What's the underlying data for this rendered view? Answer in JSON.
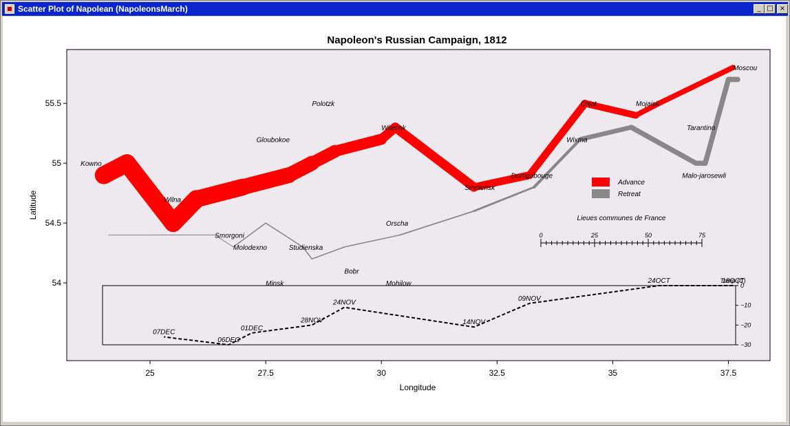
{
  "window": {
    "title": "Scatter Plot of Napolean (NapoleonsMarch)",
    "controls": {
      "minimize": "_",
      "maximize": "□",
      "close": "×"
    }
  },
  "colors": {
    "titlebar": "#0a24ce",
    "plot_background": "#ede9ee",
    "advance": "#ff0000",
    "retreat": "#888888"
  },
  "chart_data": {
    "type": "line",
    "title": "Napoleon's Russian Campaign, 1812",
    "xlabel": "Longitude",
    "ylabel": "Latitude",
    "xlim": [
      23.2,
      38.4
    ],
    "ylim": [
      53.35,
      55.95
    ],
    "xticks": [
      25,
      27.5,
      30,
      32.5,
      35,
      37.5
    ],
    "xtick_labels": [
      "25",
      "27.5",
      "30",
      "32.5",
      "35",
      "37.5"
    ],
    "yticks": [
      54,
      54.5,
      55,
      55.5
    ],
    "ytick_labels": [
      "54",
      "54.5",
      "55",
      "55.5"
    ],
    "grid": false,
    "legend": {
      "position": "right",
      "entries": [
        {
          "label": "Advance",
          "color": "#ff0000"
        },
        {
          "label": "Retreat",
          "color": "#888888"
        }
      ]
    },
    "series": [
      {
        "name": "Advance",
        "color": "#ff0000",
        "points": [
          {
            "lon": 24.0,
            "lat": 54.9,
            "survivors": 340000
          },
          {
            "lon": 24.5,
            "lat": 55.0,
            "survivors": 340000
          },
          {
            "lon": 25.5,
            "lat": 54.5,
            "survivors": 340000
          },
          {
            "lon": 26.0,
            "lat": 54.7,
            "survivors": 320000
          },
          {
            "lon": 27.0,
            "lat": 54.8,
            "survivors": 300000
          },
          {
            "lon": 28.0,
            "lat": 54.9,
            "survivors": 280000
          },
          {
            "lon": 28.5,
            "lat": 55.0,
            "survivors": 240000
          },
          {
            "lon": 29.0,
            "lat": 55.1,
            "survivors": 210000
          },
          {
            "lon": 30.0,
            "lat": 55.2,
            "survivors": 180000
          },
          {
            "lon": 30.3,
            "lat": 55.3,
            "survivors": 175000
          },
          {
            "lon": 32.0,
            "lat": 54.8,
            "survivors": 145000
          },
          {
            "lon": 33.2,
            "lat": 54.9,
            "survivors": 140000
          },
          {
            "lon": 34.4,
            "lat": 55.5,
            "survivors": 127100
          },
          {
            "lon": 35.5,
            "lat": 55.4,
            "survivors": 100000
          },
          {
            "lon": 36.0,
            "lat": 55.5,
            "survivors": 100000
          },
          {
            "lon": 37.6,
            "lat": 55.8,
            "survivors": 100000
          }
        ]
      },
      {
        "name": "Retreat",
        "color": "#888888",
        "points": [
          {
            "lon": 37.7,
            "lat": 55.7,
            "survivors": 100000
          },
          {
            "lon": 37.5,
            "lat": 55.7,
            "survivors": 98000
          },
          {
            "lon": 37.0,
            "lat": 55.0,
            "survivors": 97000
          },
          {
            "lon": 36.8,
            "lat": 55.0,
            "survivors": 96000
          },
          {
            "lon": 35.4,
            "lat": 55.3,
            "survivors": 87000
          },
          {
            "lon": 34.3,
            "lat": 55.2,
            "survivors": 55000
          },
          {
            "lon": 33.3,
            "lat": 54.8,
            "survivors": 37000
          },
          {
            "lon": 32.0,
            "lat": 54.6,
            "survivors": 24000
          },
          {
            "lon": 30.4,
            "lat": 54.4,
            "survivors": 20000
          },
          {
            "lon": 29.2,
            "lat": 54.3,
            "survivors": 20000
          },
          {
            "lon": 28.5,
            "lat": 54.2,
            "survivors": 20000
          },
          {
            "lon": 28.3,
            "lat": 54.3,
            "survivors": 20000
          },
          {
            "lon": 27.5,
            "lat": 54.5,
            "survivors": 20000
          },
          {
            "lon": 26.8,
            "lat": 54.3,
            "survivors": 12000
          },
          {
            "lon": 26.4,
            "lat": 54.4,
            "survivors": 14000
          },
          {
            "lon": 25.0,
            "lat": 54.4,
            "survivors": 8000
          },
          {
            "lon": 24.4,
            "lat": 54.4,
            "survivors": 4000
          },
          {
            "lon": 24.2,
            "lat": 54.4,
            "survivors": 4000
          },
          {
            "lon": 24.1,
            "lat": 54.4,
            "survivors": 4000
          }
        ]
      }
    ],
    "cities": [
      {
        "name": "Kowno",
        "lon": 23.5,
        "lat": 55.0
      },
      {
        "name": "Wilna",
        "lon": 25.3,
        "lat": 54.7
      },
      {
        "name": "Smorgoni",
        "lon": 26.4,
        "lat": 54.4
      },
      {
        "name": "Molodexno",
        "lon": 26.8,
        "lat": 54.3
      },
      {
        "name": "Gloubokoe",
        "lon": 27.3,
        "lat": 55.2
      },
      {
        "name": "Minsk",
        "lon": 27.5,
        "lat": 54.0
      },
      {
        "name": "Studienska",
        "lon": 28.0,
        "lat": 54.3
      },
      {
        "name": "Polotzk",
        "lon": 28.5,
        "lat": 55.5
      },
      {
        "name": "Bobr",
        "lon": 29.2,
        "lat": 54.1
      },
      {
        "name": "Witebsk",
        "lon": 30.0,
        "lat": 55.3
      },
      {
        "name": "Orscha",
        "lon": 30.1,
        "lat": 54.5
      },
      {
        "name": "Mohilow",
        "lon": 30.1,
        "lat": 54.0
      },
      {
        "name": "Smolensk",
        "lon": 31.8,
        "lat": 54.8
      },
      {
        "name": "Dorogobouge",
        "lon": 32.8,
        "lat": 54.9
      },
      {
        "name": "Wixma",
        "lon": 34.0,
        "lat": 55.2
      },
      {
        "name": "Chjat",
        "lon": 34.3,
        "lat": 55.5
      },
      {
        "name": "Mojaisk",
        "lon": 35.5,
        "lat": 55.5
      },
      {
        "name": "Tarantino",
        "lon": 36.6,
        "lat": 55.3
      },
      {
        "name": "Malo-jarosewli",
        "lon": 36.5,
        "lat": 54.9
      },
      {
        "name": "Moscou",
        "lon": 37.6,
        "lat": 55.8
      }
    ],
    "scale_bar": {
      "title": "Lieues communes de France",
      "ticks": [
        0,
        25,
        50,
        75
      ],
      "tick_labels": [
        "0",
        "25",
        "50",
        "75"
      ]
    },
    "temperature": {
      "ylabel": "Temp (C)",
      "yticks": [
        0,
        -10,
        -20,
        -30
      ],
      "ytick_labels": [
        "0",
        "−10",
        "−20",
        "−30"
      ],
      "points": [
        {
          "lon": 37.6,
          "temp": 0,
          "label": "18OCT"
        },
        {
          "lon": 36.0,
          "temp": 0,
          "label": "24OCT"
        },
        {
          "lon": 33.2,
          "temp": -9,
          "label": "09NOV"
        },
        {
          "lon": 32.0,
          "temp": -21,
          "label": "14NOV"
        },
        {
          "lon": 29.2,
          "temp": -11,
          "label": "24NOV"
        },
        {
          "lon": 28.5,
          "temp": -20,
          "label": "28NOV"
        },
        {
          "lon": 27.2,
          "temp": -24,
          "label": "01DEC"
        },
        {
          "lon": 26.7,
          "temp": -30,
          "label": "06DEC"
        },
        {
          "lon": 25.3,
          "temp": -26,
          "label": "07DEC"
        }
      ]
    }
  }
}
